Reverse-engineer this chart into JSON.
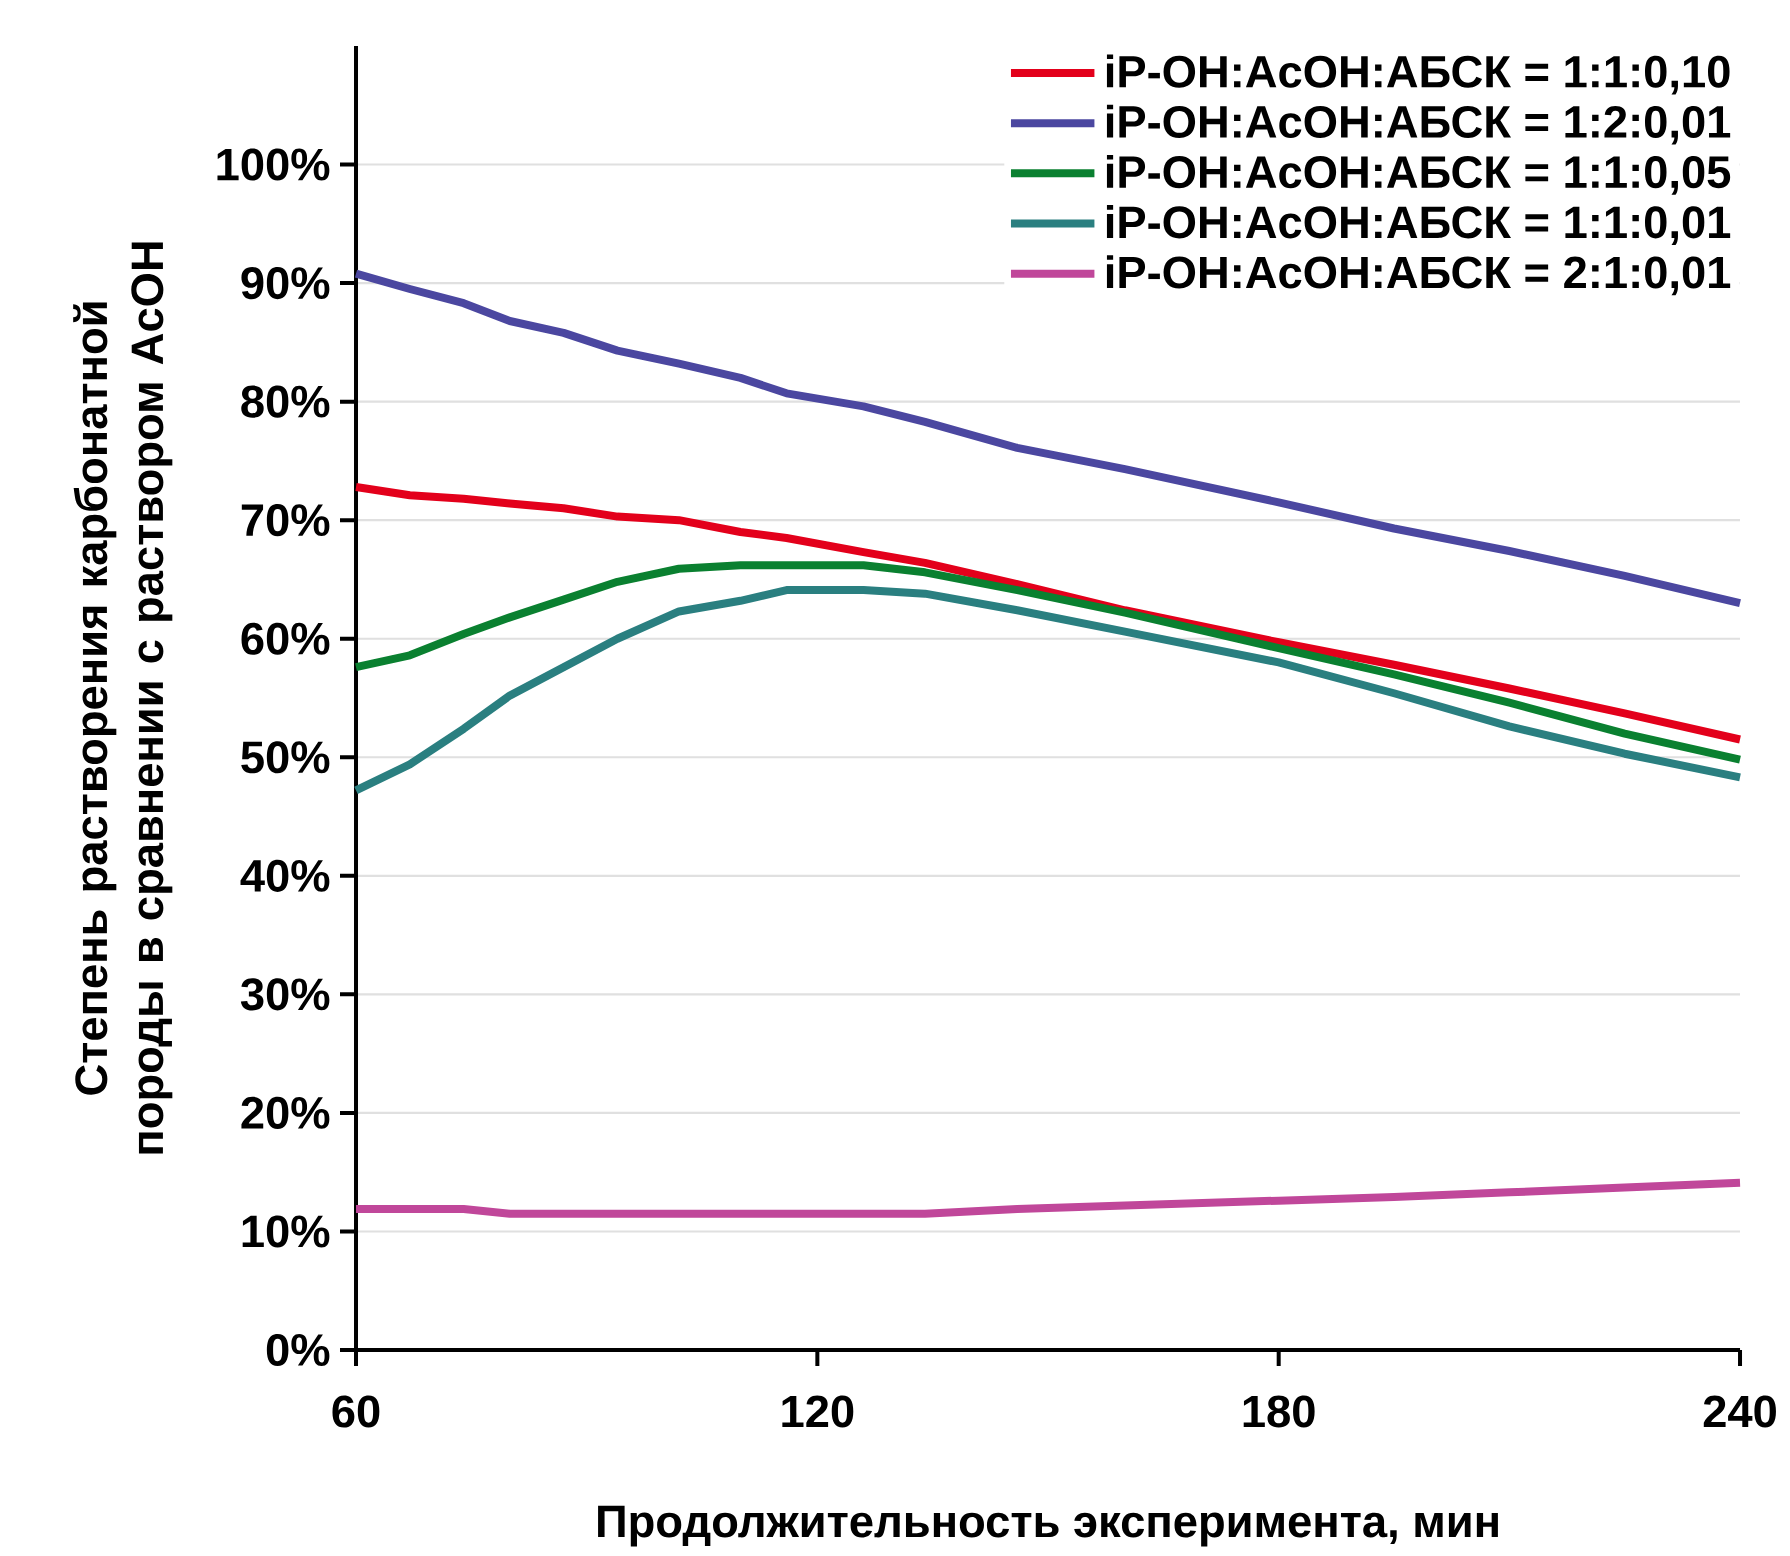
{
  "chart_data": {
    "type": "line",
    "xlabel": "Продолжительность эксперимента, мин",
    "ylabel": "Степень растворения карбонатной породы в сравнении с раствором AcOH",
    "x": [
      60,
      67,
      74,
      80,
      87,
      94,
      102,
      110,
      116,
      126,
      134,
      146,
      160,
      180,
      195,
      210,
      225,
      240
    ],
    "series": [
      {
        "name": "iP-OH:AcOH:АБСК = 1:1:0,10",
        "color": "#e3001b",
        "values": [
          72.8,
          72.1,
          71.8,
          71.4,
          71.0,
          70.3,
          70.0,
          69.0,
          68.5,
          67.3,
          66.4,
          64.6,
          62.4,
          59.7,
          57.8,
          55.8,
          53.7,
          51.5
        ]
      },
      {
        "name": "iP-OH:AcOH:АБСК = 1:2:0,01",
        "color": "#4b47a0",
        "values": [
          90.8,
          89.5,
          88.3,
          86.8,
          85.8,
          84.3,
          83.2,
          82.0,
          80.7,
          79.6,
          78.3,
          76.1,
          74.3,
          71.5,
          69.3,
          67.4,
          65.3,
          63.0
        ]
      },
      {
        "name": "iP-OH:AcOH:АБСК = 1:1:0,05",
        "color": "#0a8030",
        "values": [
          57.6,
          58.6,
          60.4,
          61.8,
          63.3,
          64.8,
          65.9,
          66.2,
          66.2,
          66.2,
          65.6,
          64.1,
          62.2,
          59.2,
          57.0,
          54.6,
          52.0,
          49.8
        ]
      },
      {
        "name": "iP-OH:AcOH:АБСК = 1:1:0,01",
        "color": "#2a7f80",
        "values": [
          47.2,
          49.4,
          52.4,
          55.2,
          57.6,
          60.0,
          62.3,
          63.2,
          64.1,
          64.1,
          63.8,
          62.4,
          60.6,
          58.0,
          55.4,
          52.6,
          50.3,
          48.3
        ]
      },
      {
        "name": "iP-OH:AcOH:АБСК = 2:1:0,01",
        "color": "#c0479a",
        "values": [
          11.9,
          11.9,
          11.9,
          11.5,
          11.5,
          11.5,
          11.5,
          11.5,
          11.5,
          11.5,
          11.5,
          11.9,
          12.2,
          12.6,
          12.9,
          13.3,
          13.7,
          14.1
        ]
      }
    ],
    "xlim": [
      60,
      240
    ],
    "xticks": [
      60,
      120,
      180,
      240
    ],
    "ylim": [
      0,
      110
    ],
    "yticks": [
      {
        "value": 0,
        "label": "0%"
      },
      {
        "value": 10,
        "label": "10%"
      },
      {
        "value": 20,
        "label": "20%"
      },
      {
        "value": 30,
        "label": "30%"
      },
      {
        "value": 40,
        "label": "40%"
      },
      {
        "value": 50,
        "label": "50%"
      },
      {
        "value": 60,
        "label": "60%"
      },
      {
        "value": 70,
        "label": "70%"
      },
      {
        "value": 80,
        "label": "80%"
      },
      {
        "value": 90,
        "label": "90%"
      },
      {
        "value": 100,
        "label": "100%"
      }
    ],
    "grid": "y",
    "legend": "top right",
    "marker": "none",
    "line_style": "solid"
  }
}
